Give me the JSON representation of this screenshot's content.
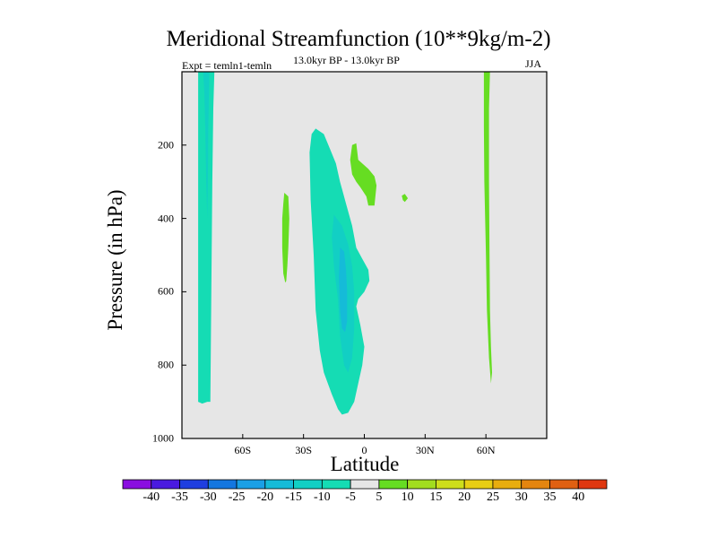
{
  "chart_data": {
    "type": "contour",
    "title": "Meridional Streamfunction (10**9kg/m-2)",
    "left_label": "Expt = temln1-temln",
    "center_label": "13.0kyr BP - 13.0kyr BP",
    "right_label": "JJA",
    "xlabel": "Latitude",
    "ylabel": "Pressure (in hPa)",
    "xlim": [
      -90,
      90
    ],
    "ylim": [
      1000,
      0
    ],
    "y_ticks": [
      {
        "value": 200,
        "label": "200"
      },
      {
        "value": 400,
        "label": "400"
      },
      {
        "value": 600,
        "label": "600"
      },
      {
        "value": 800,
        "label": "800"
      },
      {
        "value": 1000,
        "label": "1000"
      }
    ],
    "x_ticks": [
      {
        "value": -60,
        "label": "60S"
      },
      {
        "value": -30,
        "label": "30S"
      },
      {
        "value": 0,
        "label": "0"
      },
      {
        "value": 30,
        "label": "30N"
      },
      {
        "value": 60,
        "label": "60N"
      }
    ],
    "levels": [
      -40,
      -35,
      -30,
      -25,
      -20,
      -15,
      -10,
      -5,
      5,
      10,
      15,
      20,
      25,
      30,
      35,
      40
    ],
    "level_labels": [
      "-40",
      "-35",
      "-30",
      "-25",
      "-20",
      "-15",
      "-10",
      "-5",
      "5",
      "10",
      "15",
      "20",
      "25",
      "30",
      "35",
      "40"
    ],
    "colors": [
      "#8a0ee0",
      "#4a1ae0",
      "#1e3ee0",
      "#1477e0",
      "#1aa0e6",
      "#15bbd8",
      "#12cfc4",
      "#15dcb4",
      "#e6e6e6",
      "#66dd22",
      "#a2dd1e",
      "#cede1a",
      "#e8ce14",
      "#e8ad0f",
      "#e4850f",
      "#e06012",
      "#df3710"
    ],
    "background_color": "#e6e6e6",
    "regions": [
      {
        "name": "region-sh-polar-cell",
        "color": "#15dcb4",
        "points": [
          [
            -82,
            0
          ],
          [
            -74,
            0
          ],
          [
            -74.5,
            100
          ],
          [
            -75,
            300
          ],
          [
            -75.5,
            600
          ],
          [
            -76,
            900
          ],
          [
            -77.5,
            900
          ],
          [
            -80,
            905
          ],
          [
            -82,
            900
          ]
        ]
      },
      {
        "name": "region-sh-polar-cell-core",
        "color": "#12cfc4",
        "points": [
          [
            -79.5,
            0
          ],
          [
            -76.5,
            0
          ],
          [
            -77,
            150
          ],
          [
            -77.2,
            300
          ],
          [
            -77.5,
            400
          ],
          [
            -78,
            300
          ],
          [
            -78.5,
            150
          ],
          [
            -79,
            50
          ]
        ]
      },
      {
        "name": "region-main-cell",
        "color": "#15dcb4",
        "points": [
          [
            -26,
            170
          ],
          [
            -24,
            155
          ],
          [
            -20,
            170
          ],
          [
            -17,
            210
          ],
          [
            -14,
            250
          ],
          [
            -12,
            300
          ],
          [
            -9,
            360
          ],
          [
            -6,
            420
          ],
          [
            -4,
            480
          ],
          [
            -1,
            510
          ],
          [
            2,
            540
          ],
          [
            2.5,
            570
          ],
          [
            0,
            600
          ],
          [
            -3,
            620
          ],
          [
            -4,
            640
          ],
          [
            -2,
            690
          ],
          [
            0,
            750
          ],
          [
            -1,
            800
          ],
          [
            -3,
            850
          ],
          [
            -5,
            900
          ],
          [
            -8,
            930
          ],
          [
            -11,
            935
          ],
          [
            -13,
            920
          ],
          [
            -16,
            880
          ],
          [
            -20,
            820
          ],
          [
            -22,
            760
          ],
          [
            -24,
            650
          ],
          [
            -25,
            500
          ],
          [
            -26.5,
            350
          ],
          [
            -27,
            220
          ]
        ]
      },
      {
        "name": "region-main-cell-inner",
        "color": "#12cfc4",
        "points": [
          [
            -15,
            390
          ],
          [
            -11,
            420
          ],
          [
            -8,
            470
          ],
          [
            -6,
            530
          ],
          [
            -5,
            600
          ],
          [
            -5,
            700
          ],
          [
            -6,
            780
          ],
          [
            -8,
            820
          ],
          [
            -10,
            800
          ],
          [
            -12,
            720
          ],
          [
            -13,
            620
          ],
          [
            -15,
            530
          ],
          [
            -16,
            450
          ]
        ]
      },
      {
        "name": "region-main-cell-core",
        "color": "#15bbd8",
        "points": [
          [
            -12,
            480
          ],
          [
            -10,
            490
          ],
          [
            -9,
            540
          ],
          [
            -8.5,
            600
          ],
          [
            -8.5,
            680
          ],
          [
            -9.5,
            710
          ],
          [
            -11,
            700
          ],
          [
            -12,
            650
          ],
          [
            -12.5,
            560
          ]
        ]
      },
      {
        "name": "region-positive-sh-midlat",
        "color": "#66dd22",
        "points": [
          [
            -39.5,
            330
          ],
          [
            -37.5,
            340
          ],
          [
            -37,
            400
          ],
          [
            -37.5,
            480
          ],
          [
            -38,
            530
          ],
          [
            -38.5,
            570
          ],
          [
            -39,
            575
          ],
          [
            -40,
            550
          ],
          [
            -40.5,
            480
          ],
          [
            -40.5,
            400
          ],
          [
            -40,
            360
          ]
        ]
      },
      {
        "name": "region-positive-tropics-upper",
        "color": "#66dd22",
        "points": [
          [
            -6,
            200
          ],
          [
            -4,
            195
          ],
          [
            -3,
            240
          ],
          [
            2,
            265
          ],
          [
            5,
            285
          ],
          [
            6,
            310
          ],
          [
            5,
            365
          ],
          [
            2,
            365
          ],
          [
            1,
            340
          ],
          [
            -2,
            315
          ],
          [
            -4,
            300
          ],
          [
            -6,
            280
          ],
          [
            -7,
            240
          ]
        ]
      },
      {
        "name": "region-positive-speck",
        "color": "#66dd22",
        "points": [
          [
            18.5,
            338
          ],
          [
            20,
            333
          ],
          [
            21.5,
            345
          ],
          [
            20,
            355
          ],
          [
            19,
            350
          ]
        ]
      },
      {
        "name": "region-nh-positive-cell",
        "color": "#66dd22",
        "points": [
          [
            59,
            0
          ],
          [
            62,
            0
          ],
          [
            61.5,
            100
          ],
          [
            61.5,
            300
          ],
          [
            61.8,
            500
          ],
          [
            62,
            650
          ],
          [
            62.5,
            750
          ],
          [
            63,
            820
          ],
          [
            62.5,
            850
          ],
          [
            61.5,
            780
          ],
          [
            60.5,
            650
          ],
          [
            60,
            500
          ],
          [
            59.2,
            300
          ],
          [
            59,
            150
          ]
        ]
      }
    ]
  }
}
